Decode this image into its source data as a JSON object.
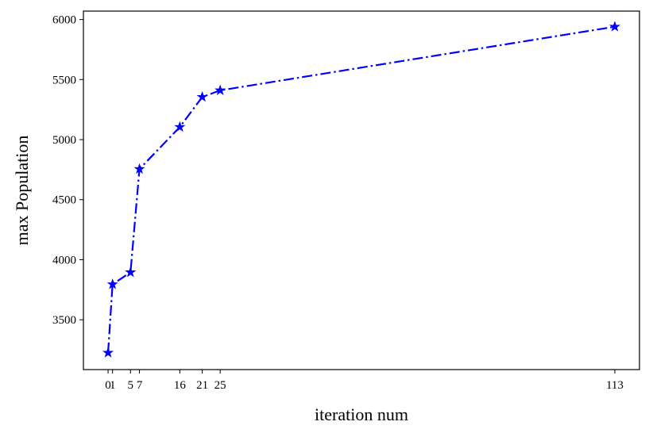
{
  "chart_data": {
    "type": "line",
    "title": "",
    "xlabel": "iteration num",
    "ylabel": "max Population",
    "x_ticks": [
      0,
      1,
      5,
      7,
      16,
      21,
      25,
      113
    ],
    "x_tick_labels": [
      "0",
      "1",
      "5",
      "7",
      "16",
      "21",
      "25",
      "113"
    ],
    "y_ticks": [
      3500,
      4000,
      4500,
      5000,
      5500,
      6000
    ],
    "y_tick_labels": [
      "3500",
      "4000",
      "4500",
      "5000",
      "5500",
      "6000"
    ],
    "xlim": [
      -5.5,
      118.5
    ],
    "ylim": [
      3085,
      6070
    ],
    "grid": false,
    "legend": false,
    "series": [
      {
        "color": "#0000ff",
        "line_style": "dash-dot",
        "marker": "star",
        "x": [
          0,
          1,
          5,
          7,
          16,
          21,
          25,
          113
        ],
        "y": [
          3225,
          3795,
          3895,
          4755,
          5105,
          5355,
          5410,
          5940
        ]
      }
    ]
  }
}
